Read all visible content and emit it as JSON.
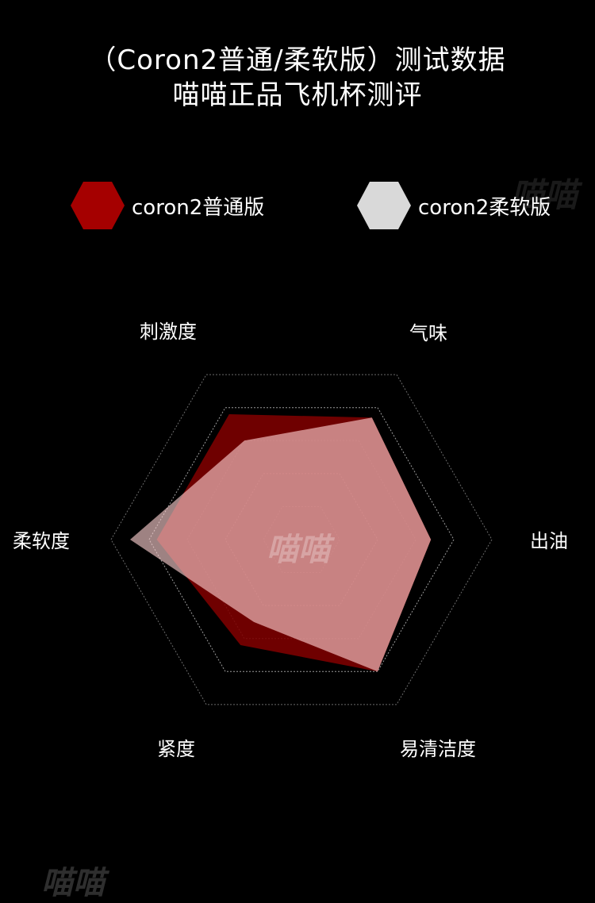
{
  "header": {
    "title_line1": "（Coron2普通/柔软版）测试数据",
    "title_line2": "喵喵正品飞机杯测评"
  },
  "watermarks": [
    "喵喵",
    "喵喵",
    "喵喵"
  ],
  "chart_data": {
    "type": "radar",
    "axes": [
      "气味",
      "出油",
      "易清洁度",
      "紧度",
      "柔软度",
      "刺激度"
    ],
    "range": [
      0,
      5
    ],
    "grid_levels": 5,
    "series": [
      {
        "name": "coron2普通版",
        "color": "#a50000",
        "fill": "rgba(130,0,0,0.85)",
        "values": [
          3.7,
          3.4,
          4.0,
          3.2,
          3.8,
          3.8
        ]
      },
      {
        "name": "coron2柔软版",
        "color": "#d9d9d9",
        "fill": "rgba(255,210,210,0.62)",
        "values": [
          3.7,
          3.4,
          4.0,
          2.5,
          4.5,
          3.0
        ]
      }
    ]
  }
}
